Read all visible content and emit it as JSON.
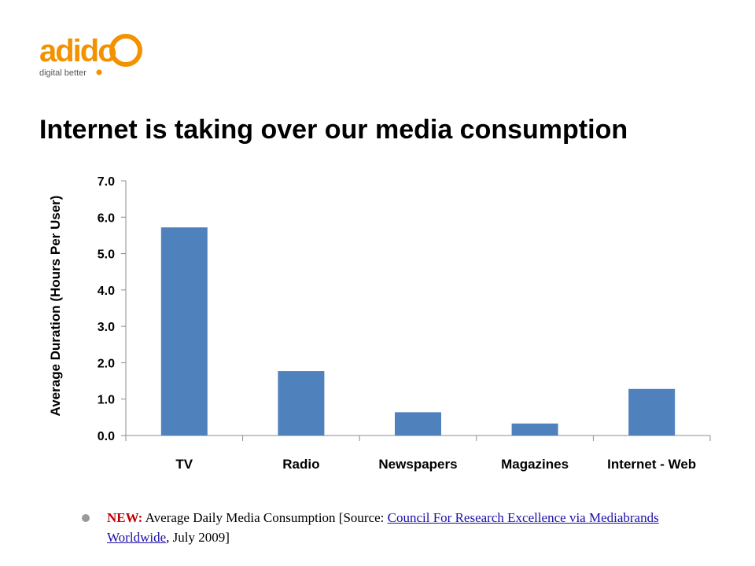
{
  "logo": {
    "text": "adido",
    "tagline": "digital better",
    "color": "#f39200"
  },
  "title": "Internet is taking over our media consumption",
  "chart_data": {
    "type": "bar",
    "title": "",
    "ylabel": "Average Duration (Hours Per User)",
    "xlabel": "",
    "categories": [
      "TV",
      "Radio",
      "Newspapers",
      "Magazines",
      "Internet - Web"
    ],
    "values": [
      5.72,
      1.77,
      0.64,
      0.33,
      1.28
    ],
    "ylim": [
      0,
      7
    ],
    "yticks": [
      "0.0",
      "1.0",
      "2.0",
      "3.0",
      "4.0",
      "5.0",
      "6.0",
      "7.0"
    ],
    "grid": false,
    "bar_color": "#4f81bd"
  },
  "caption": {
    "new_label": "NEW:",
    "text_before": " Average Daily Media Consumption [Source: ",
    "link_text": "Council For Research Excellence via Mediabrands Worldwide",
    "text_after": ", July 2009]"
  }
}
